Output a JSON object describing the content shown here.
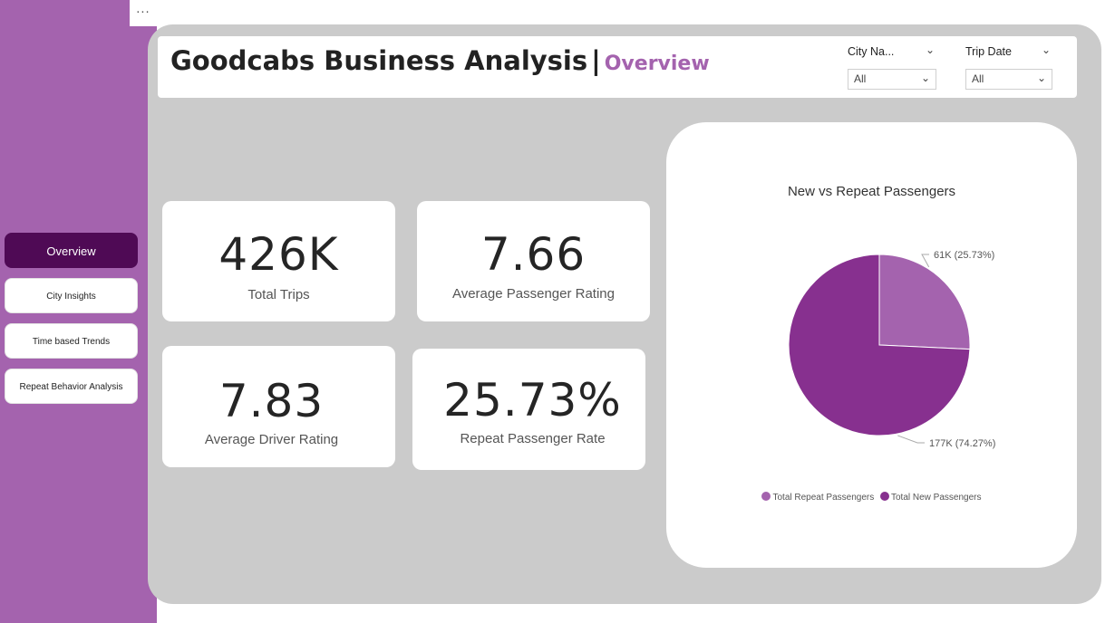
{
  "header": {
    "title": "Goodcabs Business Analysis",
    "separator": "|",
    "subtitle": "Overview"
  },
  "menu": {
    "more": "···"
  },
  "slicers": [
    {
      "label": "City Na...",
      "value": "All"
    },
    {
      "label": "Trip Date",
      "value": "All"
    }
  ],
  "nav": [
    {
      "label": "Overview",
      "active": true
    },
    {
      "label": "City Insights"
    },
    {
      "label": "Time based Trends"
    },
    {
      "label": "Repeat Behavior Analysis"
    }
  ],
  "kpis": [
    {
      "value": "426K",
      "label": "Total Trips"
    },
    {
      "value": "7.66",
      "label": "Average Passenger Rating"
    },
    {
      "value": "7.83",
      "label": "Average Driver Rating"
    },
    {
      "value": "25.73%",
      "label": "Repeat Passenger Rate"
    }
  ],
  "icons": {
    "chevron": "chevron-down-icon"
  },
  "colors": {
    "accent": "#a463ae",
    "nav_active": "#4f0a55",
    "canvas": "#cbcbcb",
    "repeat": "#a463ae",
    "new": "#87308f"
  },
  "chart_data": {
    "type": "pie",
    "title": "New vs Repeat Passengers",
    "series": [
      {
        "name": "Total Repeat Passengers",
        "value": 61,
        "percent": 25.73,
        "label": "61K (25.73%)",
        "color": "#a463ae"
      },
      {
        "name": "Total New Passengers",
        "value": 177,
        "percent": 74.27,
        "label": "177K (74.27%)",
        "color": "#87308f"
      }
    ],
    "legend_position": "bottom"
  }
}
